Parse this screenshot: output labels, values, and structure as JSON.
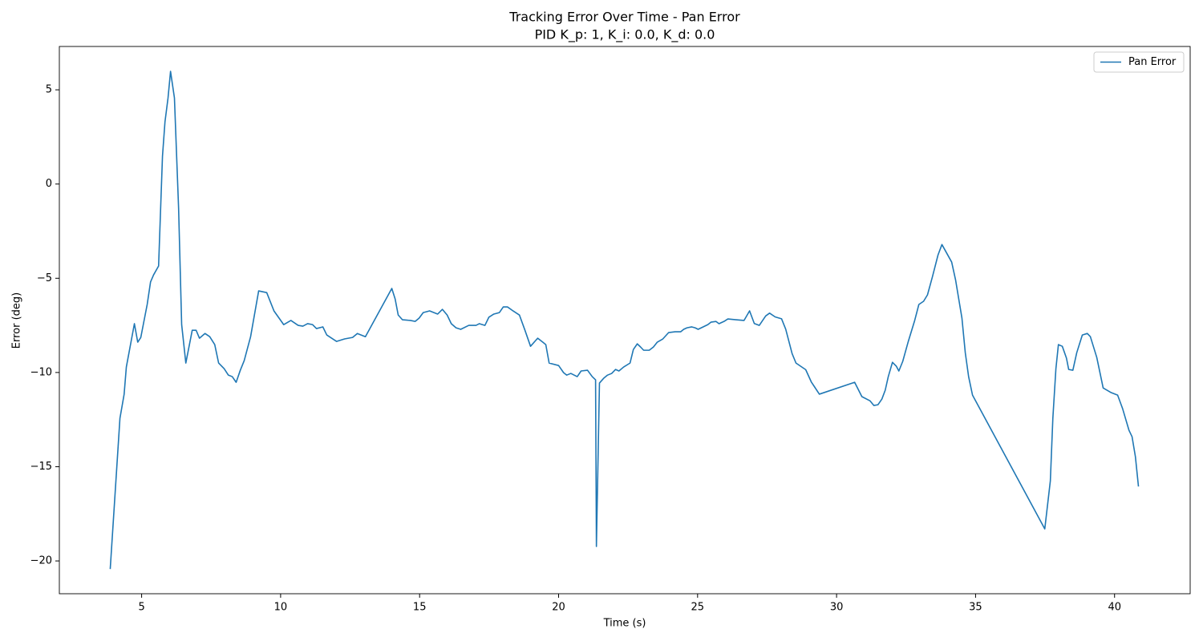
{
  "chart_data": {
    "type": "line",
    "title": "Tracking Error Over Time - Pan Error",
    "subtitle": "PID K_p: 1, K_i: 0.0, K_d: 0.0",
    "x_label": "Time (s)",
    "y_label": "Error (deg)",
    "legend": "upper right",
    "xlim": [
      2.04,
      42.72
    ],
    "ylim": [
      -21.74,
      7.3
    ],
    "xticks": [
      5,
      10,
      15,
      20,
      25,
      30,
      35,
      40
    ],
    "yticks": [
      {
        "value": -20,
        "label": "−20"
      },
      {
        "value": -15,
        "label": "−15"
      },
      {
        "value": -10,
        "label": "−10"
      },
      {
        "value": -5,
        "label": "−5"
      },
      0,
      5
    ],
    "x": [
      3.87,
      4.22,
      4.37,
      4.45,
      4.74,
      4.86,
      4.97,
      5.2,
      5.32,
      5.43,
      5.61,
      5.75,
      5.84,
      5.95,
      6.04,
      6.18,
      6.33,
      6.44,
      6.59,
      6.82,
      6.96,
      7.08,
      7.28,
      7.45,
      7.63,
      7.77,
      7.97,
      8.12,
      8.26,
      8.4,
      8.55,
      8.69,
      8.92,
      9.21,
      9.5,
      9.76,
      10.11,
      10.37,
      10.63,
      10.8,
      10.97,
      11.15,
      11.29,
      11.52,
      11.66,
      12.01,
      12.3,
      12.59,
      12.76,
      13.05,
      14.0,
      14.12,
      14.23,
      14.38,
      14.67,
      14.84,
      14.98,
      15.13,
      15.36,
      15.65,
      15.82,
      15.99,
      16.14,
      16.31,
      16.48,
      16.77,
      17.03,
      17.15,
      17.35,
      17.49,
      17.67,
      17.87,
      18.01,
      18.16,
      18.36,
      18.59,
      18.79,
      18.99,
      19.17,
      19.25,
      19.43,
      19.54,
      19.66,
      20.0,
      20.18,
      20.29,
      20.44,
      20.67,
      20.81,
      21.04,
      21.21,
      21.33,
      21.36,
      21.47,
      21.62,
      21.76,
      21.91,
      22.05,
      22.17,
      22.34,
      22.57,
      22.69,
      22.83,
      22.95,
      23.06,
      23.26,
      23.41,
      23.55,
      23.75,
      23.96,
      24.19,
      24.39,
      24.5,
      24.62,
      24.79,
      24.91,
      25.02,
      25.2,
      25.37,
      25.48,
      25.66,
      25.77,
      25.95,
      26.09,
      26.38,
      26.67,
      26.87,
      27.04,
      27.22,
      27.45,
      27.59,
      27.79,
      28.02,
      28.17,
      28.4,
      28.54,
      28.89,
      29.09,
      29.38,
      30.65,
      30.91,
      31.2,
      31.34,
      31.49,
      31.63,
      31.75,
      31.86,
      32.01,
      32.15,
      32.24,
      32.38,
      32.58,
      32.81,
      32.96,
      33.13,
      33.27,
      33.45,
      33.65,
      33.79,
      34.14,
      34.28,
      34.51,
      34.63,
      34.75,
      34.89,
      37.49,
      37.69,
      37.78,
      37.89,
      37.98,
      38.12,
      38.27,
      38.35,
      38.5,
      38.64,
      38.84,
      39.02,
      39.13,
      39.36,
      39.59,
      39.88,
      40.11,
      40.29,
      40.52,
      40.63,
      40.75,
      40.86
    ],
    "series": [
      {
        "name": "Pan Error",
        "color": "#1f77b4",
        "values": [
          -20.43,
          -12.43,
          -11.16,
          -9.71,
          -7.41,
          -8.39,
          -8.14,
          -6.39,
          -5.2,
          -4.82,
          -4.35,
          1.47,
          3.3,
          4.57,
          5.98,
          4.57,
          -1.29,
          -7.46,
          -9.5,
          -7.76,
          -7.76,
          -8.18,
          -7.93,
          -8.1,
          -8.52,
          -9.5,
          -9.8,
          -10.14,
          -10.22,
          -10.52,
          -9.88,
          -9.37,
          -8.1,
          -5.67,
          -5.76,
          -6.73,
          -7.46,
          -7.24,
          -7.5,
          -7.54,
          -7.41,
          -7.46,
          -7.67,
          -7.58,
          -8.01,
          -8.35,
          -8.22,
          -8.14,
          -7.93,
          -8.1,
          -5.54,
          -6.1,
          -6.95,
          -7.2,
          -7.24,
          -7.29,
          -7.12,
          -6.82,
          -6.73,
          -6.9,
          -6.65,
          -6.95,
          -7.41,
          -7.63,
          -7.71,
          -7.5,
          -7.5,
          -7.41,
          -7.5,
          -7.07,
          -6.9,
          -6.82,
          -6.52,
          -6.52,
          -6.73,
          -6.95,
          -7.76,
          -8.61,
          -8.31,
          -8.18,
          -8.39,
          -8.52,
          -9.5,
          -9.63,
          -10.01,
          -10.14,
          -10.05,
          -10.22,
          -9.92,
          -9.88,
          -10.22,
          -10.39,
          -19.23,
          -10.56,
          -10.31,
          -10.14,
          -10.05,
          -9.84,
          -9.92,
          -9.71,
          -9.5,
          -8.78,
          -8.48,
          -8.65,
          -8.82,
          -8.82,
          -8.65,
          -8.39,
          -8.22,
          -7.88,
          -7.84,
          -7.84,
          -7.71,
          -7.63,
          -7.58,
          -7.63,
          -7.71,
          -7.58,
          -7.46,
          -7.33,
          -7.29,
          -7.41,
          -7.29,
          -7.16,
          -7.2,
          -7.24,
          -6.73,
          -7.4,
          -7.5,
          -7.0,
          -6.85,
          -7.05,
          -7.15,
          -7.7,
          -9.0,
          -9.5,
          -9.85,
          -10.5,
          -11.15,
          -10.52,
          -11.28,
          -11.5,
          -11.75,
          -11.71,
          -11.41,
          -10.94,
          -10.22,
          -9.46,
          -9.67,
          -9.92,
          -9.41,
          -8.35,
          -7.24,
          -6.39,
          -6.22,
          -5.88,
          -4.91,
          -3.76,
          -3.21,
          -4.14,
          -5.08,
          -7.12,
          -8.95,
          -10.22,
          -11.2,
          -18.3,
          -15.75,
          -12.43,
          -9.8,
          -8.52,
          -8.61,
          -9.24,
          -9.84,
          -9.88,
          -8.95,
          -8.01,
          -7.93,
          -8.1,
          -9.2,
          -10.82,
          -11.07,
          -11.2,
          -11.92,
          -13.07,
          -13.41,
          -14.47,
          -16.05
        ]
      }
    ]
  }
}
